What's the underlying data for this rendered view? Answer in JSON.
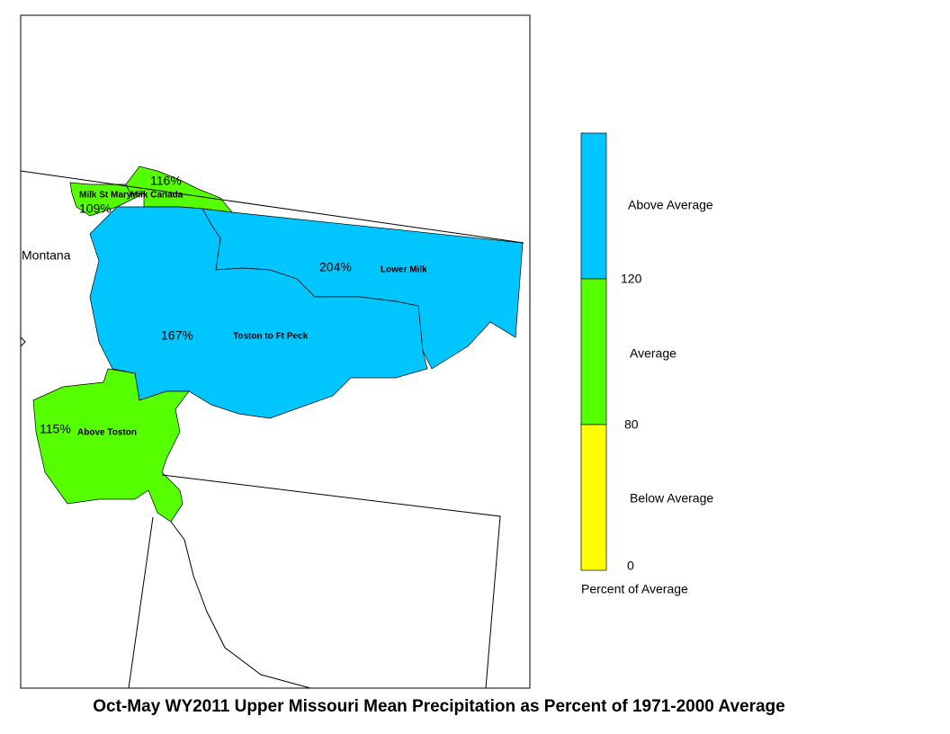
{
  "map": {
    "title": "Oct-May WY2011 Upper Missouri Mean Precipitation as Percent of 1971-2000 Average",
    "state_label": "Montana",
    "regions": [
      {
        "name": "Milk St Mary",
        "percent": "109%",
        "color": "#55ff00"
      },
      {
        "name": "Milk Canada",
        "percent": "116%",
        "color": "#55ff00"
      },
      {
        "name": "Lower Milk",
        "percent": "204%",
        "color": "#00c5ff"
      },
      {
        "name": "Toston to Ft Peck",
        "percent": "167%",
        "color": "#00c5ff"
      },
      {
        "name": "Above Toston",
        "percent": "115%",
        "color": "#55ff00"
      }
    ]
  },
  "legend": {
    "title": "Percent of Average",
    "classes": [
      {
        "label": "Above Average",
        "color": "#00c5ff"
      },
      {
        "label": "Average",
        "color": "#55ff00"
      },
      {
        "label": "Below Average",
        "color": "#ffff00"
      }
    ],
    "breaks": [
      "120",
      "80",
      "0"
    ]
  }
}
